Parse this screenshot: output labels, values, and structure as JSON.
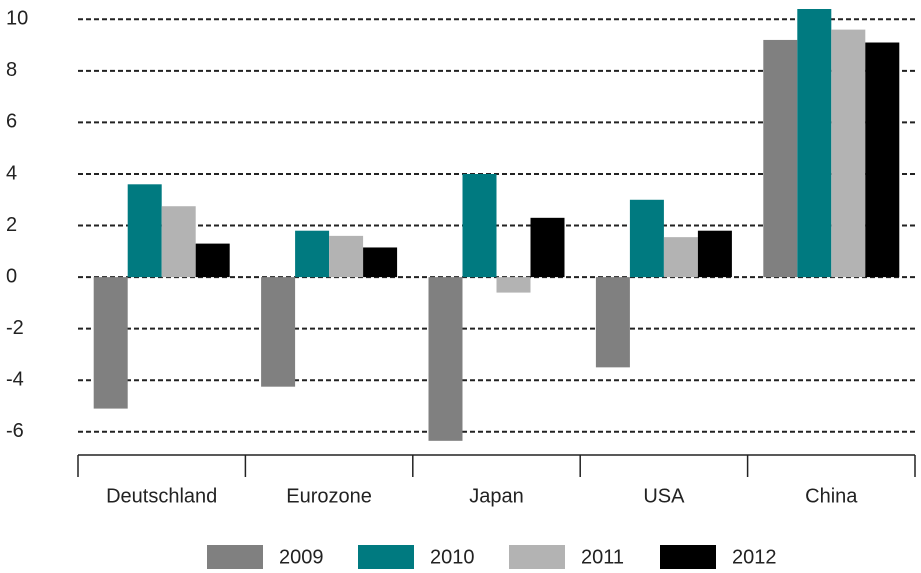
{
  "chart_data": {
    "type": "bar",
    "categories": [
      "Deutschland",
      "Eurozone",
      "Japan",
      "USA",
      "China"
    ],
    "series": [
      {
        "name": "2009",
        "color": "#808080",
        "values": [
          -5.1,
          -4.25,
          -6.35,
          -3.5,
          9.2
        ]
      },
      {
        "name": "2010",
        "color": "#007a80",
        "values": [
          3.6,
          1.8,
          4.0,
          3.0,
          10.4
        ]
      },
      {
        "name": "2011",
        "color": "#b3b3b3",
        "values": [
          2.75,
          1.6,
          -0.6,
          1.55,
          9.6
        ]
      },
      {
        "name": "2012",
        "color": "#000000",
        "values": [
          1.3,
          1.15,
          2.3,
          1.8,
          9.1
        ]
      }
    ],
    "ylim": [
      -6.9,
      10.4
    ],
    "yticks": [
      -6,
      -4,
      -2,
      0,
      2,
      4,
      6,
      8,
      10
    ],
    "grid": true,
    "legend": "bottom"
  }
}
